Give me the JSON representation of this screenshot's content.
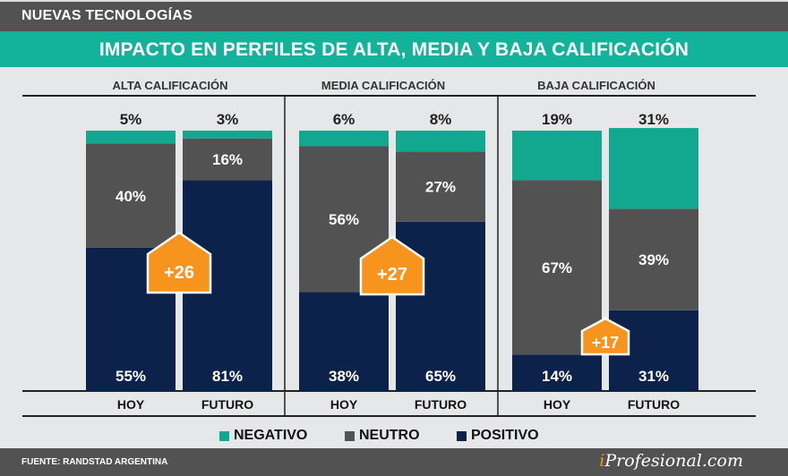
{
  "header": {
    "section": "NUEVAS TECNOLOGÍAS",
    "title": "IMPACTO EN PERFILES DE ALTA, MEDIA Y BAJA CALIFICACIÓN"
  },
  "colors": {
    "negativo": "#12a88f",
    "neutro": "#525252",
    "positivo": "#0c224a",
    "arrow": "#f7941d",
    "title_bg": "#12b39a"
  },
  "chart_data": {
    "type": "bar",
    "stacked": true,
    "title": "IMPACTO EN PERFILES DE ALTA, MEDIA Y BAJA CALIFICACIÓN",
    "ylim": [
      0,
      100
    ],
    "unit": "%",
    "groups": [
      {
        "label": "ALTA CALIFICACIÓN",
        "categories": [
          "HOY",
          "FUTURO"
        ],
        "series": {
          "positivo": [
            55,
            81
          ],
          "neutro": [
            40,
            16
          ],
          "negativo": [
            5,
            3
          ]
        },
        "delta": "+26"
      },
      {
        "label": "MEDIA CALIFICACIÓN",
        "categories": [
          "HOY",
          "FUTURO"
        ],
        "series": {
          "positivo": [
            38,
            65
          ],
          "neutro": [
            56,
            27
          ],
          "negativo": [
            6,
            8
          ]
        },
        "delta": "+27"
      },
      {
        "label": "BAJA CALIFICACIÓN",
        "categories": [
          "HOY",
          "FUTURO"
        ],
        "series": {
          "positivo": [
            14,
            31
          ],
          "neutro": [
            67,
            39
          ],
          "negativo": [
            19,
            31
          ]
        },
        "delta": "+17"
      }
    ],
    "legend": [
      {
        "key": "negativo",
        "label": "NEGATIVO"
      },
      {
        "key": "neutro",
        "label": "NEUTRO"
      },
      {
        "key": "positivo",
        "label": "POSITIVO"
      }
    ],
    "legend_position": "bottom"
  },
  "footer": {
    "source": "FUENTE: RANDSTAD ARGENTINA",
    "logo_i": "i",
    "logo_rest": "Profesional.com"
  }
}
